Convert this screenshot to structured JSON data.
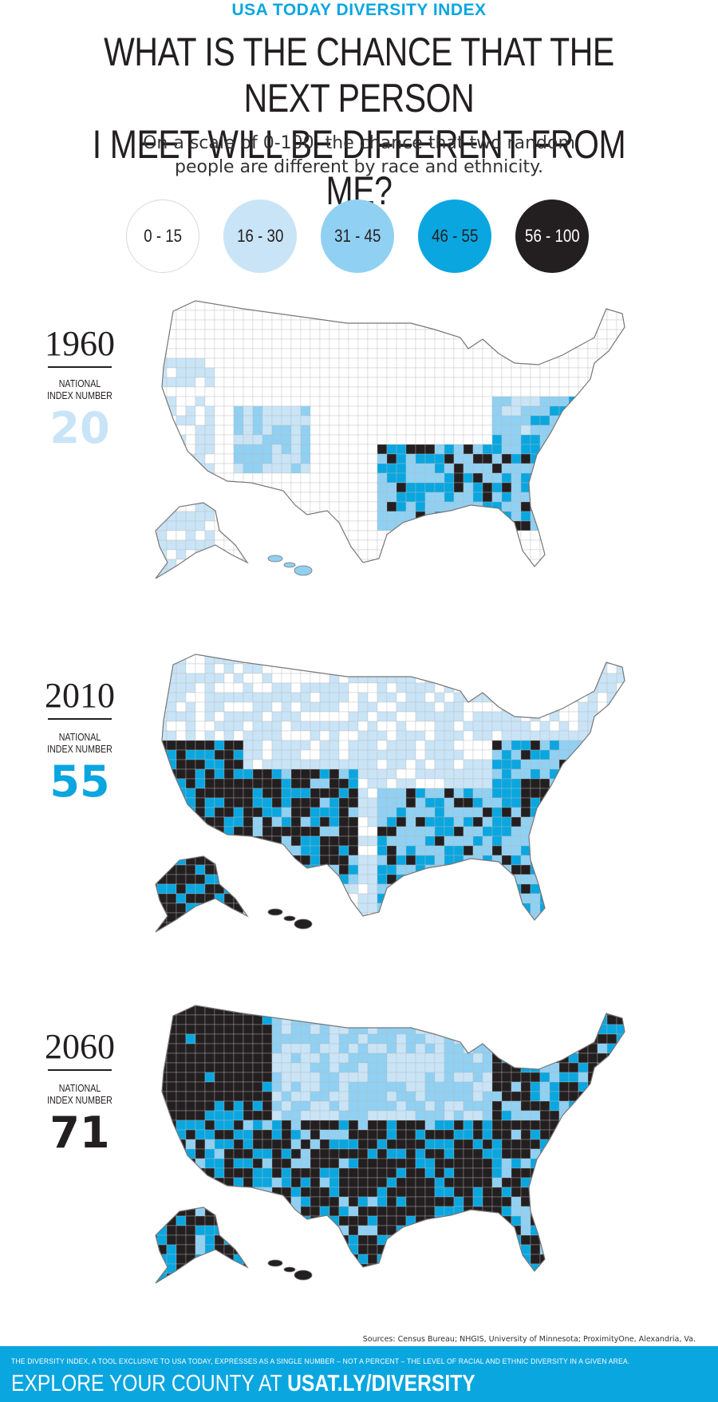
{
  "kicker": "USA TODAY DIVERSITY INDEX",
  "headline": {
    "line1": "WHAT IS THE CHANCE THAT THE NEXT PERSON",
    "line2": "I MEET WILL BE DIFFERENT FROM ME?"
  },
  "subhead": {
    "line1": "On a scale of 0-100, the chance that two random",
    "line2": "people are different by race and ethnicity."
  },
  "legend": [
    {
      "label": "0 - 15",
      "color": "#ffffff",
      "text_color": "#231f20"
    },
    {
      "label": "16 - 30",
      "color": "#c9e4f6",
      "text_color": "#231f20"
    },
    {
      "label": "31 - 45",
      "color": "#90d0f2",
      "text_color": "#231f20"
    },
    {
      "label": "46 - 55",
      "color": "#0aa6e0",
      "text_color": "#231f20"
    },
    {
      "label": "56 - 100",
      "color": "#231f20",
      "text_color": "#ffffff"
    }
  ],
  "panels": [
    {
      "year": "1960",
      "index_label_1": "NATIONAL",
      "index_label_2": "INDEX NUMBER",
      "index_value": "20",
      "index_color": "#c9e4f6"
    },
    {
      "year": "2010",
      "index_label_1": "NATIONAL",
      "index_label_2": "INDEX NUMBER",
      "index_value": "55",
      "index_color": "#0aa6e0"
    },
    {
      "year": "2060",
      "index_label_1": "NATIONAL",
      "index_label_2": "INDEX NUMBER",
      "index_value": "71",
      "index_color": "#231f20"
    }
  ],
  "sources": "Sources: Census Bureau; NHGIS, University of Minnesota; ProximityOne, Alexandria, Va.",
  "footer": {
    "note": "THE DIVERSITY INDEX, A TOOL EXCLUSIVE TO USA TODAY, EXPRESSES AS A SINGLE NUMBER – NOT A PERCENT – THE LEVEL OF RACIAL AND ETHNIC DIVERSITY IN A GIVEN AREA.",
    "cta_prefix": "EXPLORE YOUR COUNTY AT ",
    "cta_link": "USAT.LY/DIVERSITY"
  }
}
